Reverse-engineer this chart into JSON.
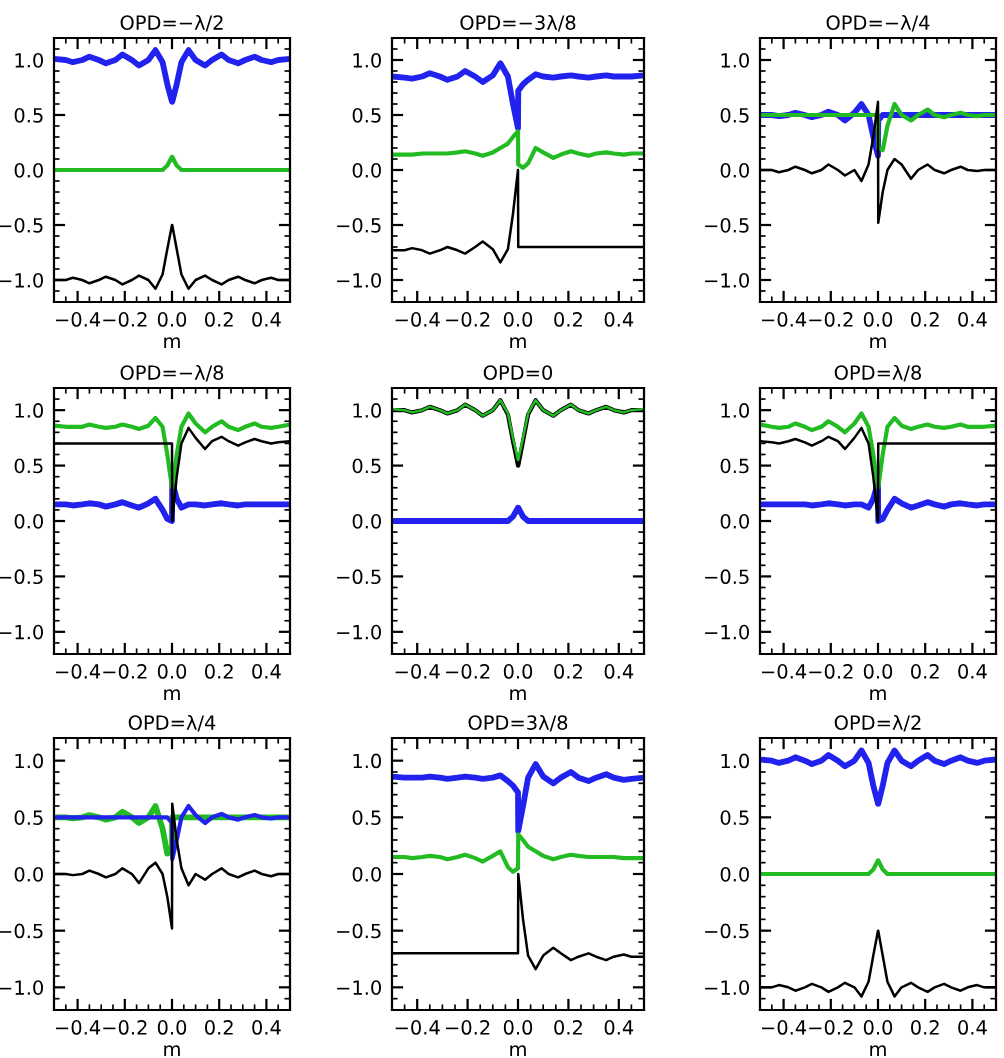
{
  "chart_data": [
    {
      "type": "line",
      "title": "OPD=−λ/2",
      "xlabel": "m",
      "x": [
        -0.5,
        -0.45,
        -0.42,
        -0.38,
        -0.35,
        -0.31,
        -0.28,
        -0.24,
        -0.21,
        -0.17,
        -0.14,
        -0.1,
        -0.07,
        -0.04,
        -0.02,
        0,
        0.001,
        0.02,
        0.04,
        0.07,
        0.1,
        0.14,
        0.17,
        0.21,
        0.24,
        0.28,
        0.31,
        0.35,
        0.38,
        0.42,
        0.45,
        0.5
      ],
      "xlim": [
        -0.5,
        0.5
      ],
      "xticks": [
        {
          "value": -0.4,
          "label": "−0.4"
        },
        {
          "value": -0.2,
          "label": "−0.2"
        },
        {
          "value": 0,
          "label": "0.0"
        },
        {
          "value": 0.2,
          "label": "0.2"
        },
        {
          "value": 0.4,
          "label": "0.4"
        }
      ],
      "ylim": [
        -1.2,
        1.2
      ],
      "yticks": [
        {
          "value": -1,
          "label": "−1.0"
        },
        {
          "value": -0.5,
          "label": "−0.5"
        },
        {
          "value": 0,
          "label": "0.0"
        },
        {
          "value": 0.5,
          "label": "0.5"
        },
        {
          "value": 1,
          "label": "1.0"
        }
      ],
      "series": [
        {
          "color": "#2222ee",
          "values": [
            1.01,
            1.0,
            0.98,
            1.0,
            1.03,
            1.0,
            0.97,
            1.0,
            1.05,
            1.0,
            0.95,
            1.0,
            1.09,
            0.98,
            0.78,
            0.62,
            0.62,
            0.78,
            0.98,
            1.09,
            1.0,
            0.95,
            1.0,
            1.05,
            1.0,
            0.97,
            1.0,
            1.03,
            1.0,
            0.98,
            1.0,
            1.01
          ]
        },
        {
          "color": "#22bb22",
          "values": [
            0,
            0,
            0,
            0,
            0,
            0,
            0,
            0,
            0,
            0,
            0,
            0,
            0,
            0,
            0.04,
            0.12,
            0.12,
            0.04,
            0,
            0,
            0,
            0,
            0,
            0,
            0,
            0,
            0,
            0,
            0,
            0,
            0,
            0
          ]
        },
        {
          "color": "#000000",
          "values": [
            -1.0,
            -1.0,
            -0.98,
            -1.0,
            -1.03,
            -1.0,
            -0.97,
            -1.0,
            -1.04,
            -1.0,
            -0.96,
            -1.0,
            -1.08,
            -0.95,
            -0.72,
            -0.5,
            -0.5,
            -0.72,
            -0.95,
            -1.08,
            -1.0,
            -0.96,
            -1.0,
            -1.04,
            -1.0,
            -0.97,
            -1.0,
            -1.03,
            -1.0,
            -0.98,
            -1.0,
            -1.0
          ]
        }
      ]
    },
    {
      "type": "line",
      "title": "OPD=−3λ/8",
      "xlabel": "m",
      "x": [
        -0.5,
        -0.45,
        -0.42,
        -0.38,
        -0.35,
        -0.31,
        -0.28,
        -0.24,
        -0.21,
        -0.17,
        -0.14,
        -0.1,
        -0.07,
        -0.04,
        -0.02,
        0,
        0.001,
        0.02,
        0.04,
        0.07,
        0.1,
        0.14,
        0.17,
        0.21,
        0.24,
        0.28,
        0.31,
        0.35,
        0.38,
        0.42,
        0.45,
        0.5
      ],
      "xlim": [
        -0.5,
        0.5
      ],
      "xticks": [
        {
          "value": -0.4,
          "label": "−0.4"
        },
        {
          "value": -0.2,
          "label": "−0.2"
        },
        {
          "value": 0,
          "label": "0.0"
        },
        {
          "value": 0.2,
          "label": "0.2"
        },
        {
          "value": 0.4,
          "label": "0.4"
        }
      ],
      "ylim": [
        -1.2,
        1.2
      ],
      "yticks": [
        {
          "value": -1,
          "label": "−1.0"
        },
        {
          "value": -0.5,
          "label": "−0.5"
        },
        {
          "value": 0,
          "label": "0.0"
        },
        {
          "value": 0.5,
          "label": "0.5"
        },
        {
          "value": 1,
          "label": "1.0"
        }
      ],
      "series": [
        {
          "color": "#2222ee",
          "values": [
            0.85,
            0.84,
            0.83,
            0.85,
            0.88,
            0.85,
            0.82,
            0.85,
            0.9,
            0.85,
            0.8,
            0.86,
            0.97,
            0.85,
            0.6,
            0.38,
            0.72,
            0.78,
            0.82,
            0.87,
            0.85,
            0.84,
            0.85,
            0.86,
            0.85,
            0.84,
            0.85,
            0.86,
            0.85,
            0.85,
            0.85,
            0.86
          ]
        },
        {
          "color": "#22bb22",
          "values": [
            0.14,
            0.14,
            0.14,
            0.15,
            0.15,
            0.15,
            0.15,
            0.16,
            0.17,
            0.15,
            0.13,
            0.16,
            0.2,
            0.24,
            0.3,
            0.35,
            0.05,
            0.02,
            0.06,
            0.2,
            0.16,
            0.11,
            0.14,
            0.17,
            0.15,
            0.13,
            0.15,
            0.16,
            0.15,
            0.14,
            0.15,
            0.15
          ]
        },
        {
          "color": "#000000",
          "values": [
            -0.73,
            -0.73,
            -0.71,
            -0.73,
            -0.76,
            -0.73,
            -0.7,
            -0.73,
            -0.76,
            -0.7,
            -0.65,
            -0.72,
            -0.84,
            -0.72,
            -0.4,
            0.0,
            -0.7,
            -0.7,
            -0.7,
            -0.7,
            -0.7,
            -0.7,
            -0.7,
            -0.7,
            -0.7,
            -0.7,
            -0.7,
            -0.7,
            -0.7,
            -0.7,
            -0.7,
            -0.7
          ]
        }
      ]
    },
    {
      "type": "line",
      "title": "OPD=−λ/4",
      "xlabel": "m",
      "x": [
        -0.5,
        -0.45,
        -0.42,
        -0.38,
        -0.35,
        -0.31,
        -0.28,
        -0.24,
        -0.21,
        -0.17,
        -0.14,
        -0.1,
        -0.07,
        -0.04,
        -0.02,
        0,
        0.001,
        0.02,
        0.04,
        0.07,
        0.1,
        0.14,
        0.17,
        0.21,
        0.24,
        0.28,
        0.31,
        0.35,
        0.38,
        0.42,
        0.45,
        0.5
      ],
      "xlim": [
        -0.5,
        0.5
      ],
      "xticks": [
        {
          "value": -0.4,
          "label": "−0.4"
        },
        {
          "value": -0.2,
          "label": "−0.2"
        },
        {
          "value": 0,
          "label": "0.0"
        },
        {
          "value": 0.2,
          "label": "0.2"
        },
        {
          "value": 0.4,
          "label": "0.4"
        }
      ],
      "ylim": [
        -1.2,
        1.2
      ],
      "yticks": [
        {
          "value": -1,
          "label": "−1.0"
        },
        {
          "value": -0.5,
          "label": "−0.5"
        },
        {
          "value": 0,
          "label": "0.0"
        },
        {
          "value": 0.5,
          "label": "0.5"
        },
        {
          "value": 1,
          "label": "1.0"
        }
      ],
      "series": [
        {
          "color": "#2222ee",
          "values": [
            0.5,
            0.5,
            0.49,
            0.5,
            0.52,
            0.5,
            0.48,
            0.5,
            0.53,
            0.5,
            0.45,
            0.52,
            0.6,
            0.5,
            0.3,
            0.13,
            0.45,
            0.5,
            0.5,
            0.5,
            0.5,
            0.5,
            0.5,
            0.5,
            0.5,
            0.5,
            0.5,
            0.5,
            0.5,
            0.5,
            0.5,
            0.5
          ]
        },
        {
          "color": "#22bb22",
          "values": [
            0.5,
            0.5,
            0.5,
            0.5,
            0.5,
            0.5,
            0.5,
            0.5,
            0.5,
            0.5,
            0.5,
            0.5,
            0.5,
            0.5,
            0.5,
            0.5,
            0.2,
            0.18,
            0.4,
            0.6,
            0.5,
            0.45,
            0.5,
            0.55,
            0.5,
            0.48,
            0.5,
            0.52,
            0.5,
            0.49,
            0.5,
            0.5
          ]
        },
        {
          "color": "#000000",
          "values": [
            0.0,
            0.0,
            -0.02,
            0.0,
            0.03,
            0.0,
            -0.03,
            0.0,
            0.05,
            0.0,
            -0.05,
            0.0,
            -0.1,
            0.05,
            0.3,
            0.62,
            -0.48,
            -0.2,
            0.0,
            0.1,
            0.05,
            -0.08,
            0.0,
            0.05,
            0.0,
            -0.03,
            0.0,
            0.03,
            0.0,
            -0.01,
            0.0,
            0.0
          ]
        }
      ]
    },
    {
      "type": "line",
      "title": "OPD=−λ/8",
      "xlabel": "m",
      "x": [
        -0.5,
        -0.45,
        -0.42,
        -0.38,
        -0.35,
        -0.31,
        -0.28,
        -0.24,
        -0.21,
        -0.17,
        -0.14,
        -0.1,
        -0.07,
        -0.04,
        -0.02,
        0,
        0.001,
        0.02,
        0.04,
        0.07,
        0.1,
        0.14,
        0.17,
        0.21,
        0.24,
        0.28,
        0.31,
        0.35,
        0.38,
        0.42,
        0.45,
        0.5
      ],
      "xlim": [
        -0.5,
        0.5
      ],
      "xticks": [
        {
          "value": -0.4,
          "label": "−0.4"
        },
        {
          "value": -0.2,
          "label": "−0.2"
        },
        {
          "value": 0,
          "label": "0.0"
        },
        {
          "value": 0.2,
          "label": "0.2"
        },
        {
          "value": 0.4,
          "label": "0.4"
        }
      ],
      "ylim": [
        -1.2,
        1.2
      ],
      "yticks": [
        {
          "value": -1,
          "label": "−1.0"
        },
        {
          "value": -0.5,
          "label": "−0.5"
        },
        {
          "value": 0,
          "label": "0.0"
        },
        {
          "value": 0.5,
          "label": "0.5"
        },
        {
          "value": 1,
          "label": "1.0"
        }
      ],
      "series": [
        {
          "color": "#2222ee",
          "values": [
            0.15,
            0.15,
            0.14,
            0.15,
            0.16,
            0.15,
            0.13,
            0.15,
            0.17,
            0.14,
            0.12,
            0.16,
            0.2,
            0.1,
            0.02,
            0.0,
            0.35,
            0.2,
            0.12,
            0.15,
            0.15,
            0.14,
            0.15,
            0.16,
            0.15,
            0.14,
            0.15,
            0.15,
            0.15,
            0.15,
            0.15,
            0.15
          ]
        },
        {
          "color": "#22bb22",
          "values": [
            0.86,
            0.85,
            0.85,
            0.85,
            0.87,
            0.85,
            0.84,
            0.85,
            0.87,
            0.85,
            0.83,
            0.86,
            0.93,
            0.85,
            0.6,
            0.3,
            0.3,
            0.6,
            0.85,
            0.97,
            0.88,
            0.8,
            0.85,
            0.9,
            0.85,
            0.82,
            0.85,
            0.88,
            0.85,
            0.84,
            0.85,
            0.87
          ]
        },
        {
          "color": "#000000",
          "values": [
            0.7,
            0.7,
            0.7,
            0.7,
            0.7,
            0.7,
            0.7,
            0.7,
            0.7,
            0.7,
            0.7,
            0.7,
            0.7,
            0.7,
            0.7,
            0.7,
            0.0,
            0.4,
            0.7,
            0.84,
            0.75,
            0.65,
            0.72,
            0.76,
            0.72,
            0.68,
            0.71,
            0.74,
            0.72,
            0.7,
            0.71,
            0.72
          ]
        }
      ]
    },
    {
      "type": "line",
      "title": "OPD=0",
      "xlabel": "m",
      "x": [
        -0.5,
        -0.45,
        -0.42,
        -0.38,
        -0.35,
        -0.31,
        -0.28,
        -0.24,
        -0.21,
        -0.17,
        -0.14,
        -0.1,
        -0.07,
        -0.04,
        -0.02,
        0,
        0.001,
        0.02,
        0.04,
        0.07,
        0.1,
        0.14,
        0.17,
        0.21,
        0.24,
        0.28,
        0.31,
        0.35,
        0.38,
        0.42,
        0.45,
        0.5
      ],
      "xlim": [
        -0.5,
        0.5
      ],
      "xticks": [
        {
          "value": -0.4,
          "label": "−0.4"
        },
        {
          "value": -0.2,
          "label": "−0.2"
        },
        {
          "value": 0,
          "label": "0.0"
        },
        {
          "value": 0.2,
          "label": "0.2"
        },
        {
          "value": 0.4,
          "label": "0.4"
        }
      ],
      "ylim": [
        -1.2,
        1.2
      ],
      "yticks": [
        {
          "value": -1,
          "label": "−1.0"
        },
        {
          "value": -0.5,
          "label": "−0.5"
        },
        {
          "value": 0,
          "label": "0.0"
        },
        {
          "value": 0.5,
          "label": "0.5"
        },
        {
          "value": 1,
          "label": "1.0"
        }
      ],
      "series": [
        {
          "color": "#2222ee",
          "values": [
            0,
            0,
            0,
            0,
            0,
            0,
            0,
            0,
            0,
            0,
            0,
            0,
            0,
            0,
            0.04,
            0.12,
            0.12,
            0.04,
            0,
            0,
            0,
            0,
            0,
            0,
            0,
            0,
            0,
            0,
            0,
            0,
            0,
            0
          ]
        },
        {
          "color": "#000000",
          "values": [
            1.0,
            1.0,
            0.98,
            1.0,
            1.03,
            1.0,
            0.97,
            1.0,
            1.05,
            1.0,
            0.95,
            1.0,
            1.09,
            0.96,
            0.72,
            0.5,
            0.5,
            0.72,
            0.96,
            1.09,
            1.0,
            0.95,
            1.0,
            1.05,
            1.0,
            0.97,
            1.0,
            1.03,
            1.0,
            0.98,
            1.0,
            1.0
          ]
        },
        {
          "color": "#22bb22",
          "values": [
            1.01,
            1.0,
            0.98,
            1.0,
            1.03,
            1.0,
            0.97,
            1.0,
            1.05,
            1.0,
            0.95,
            1.0,
            1.09,
            0.97,
            0.75,
            0.55,
            0.55,
            0.75,
            0.97,
            1.09,
            1.0,
            0.95,
            1.0,
            1.05,
            1.0,
            0.97,
            1.0,
            1.03,
            1.0,
            0.98,
            1.0,
            1.01
          ]
        }
      ]
    },
    {
      "type": "line",
      "title": "OPD=λ/8",
      "xlabel": "m",
      "x": [
        -0.5,
        -0.45,
        -0.42,
        -0.38,
        -0.35,
        -0.31,
        -0.28,
        -0.24,
        -0.21,
        -0.17,
        -0.14,
        -0.1,
        -0.07,
        -0.04,
        -0.02,
        0,
        0.001,
        0.02,
        0.04,
        0.07,
        0.1,
        0.14,
        0.17,
        0.21,
        0.24,
        0.28,
        0.31,
        0.35,
        0.38,
        0.42,
        0.45,
        0.5
      ],
      "xlim": [
        -0.5,
        0.5
      ],
      "xticks": [
        {
          "value": -0.4,
          "label": "−0.4"
        },
        {
          "value": -0.2,
          "label": "−0.2"
        },
        {
          "value": 0,
          "label": "0.0"
        },
        {
          "value": 0.2,
          "label": "0.2"
        },
        {
          "value": 0.4,
          "label": "0.4"
        }
      ],
      "ylim": [
        -1.2,
        1.2
      ],
      "yticks": [
        {
          "value": -1,
          "label": "−1.0"
        },
        {
          "value": -0.5,
          "label": "−0.5"
        },
        {
          "value": 0,
          "label": "0.0"
        },
        {
          "value": 0.5,
          "label": "0.5"
        },
        {
          "value": 1,
          "label": "1.0"
        }
      ],
      "series": [
        {
          "color": "#2222ee",
          "values": [
            0.15,
            0.15,
            0.15,
            0.15,
            0.15,
            0.15,
            0.14,
            0.15,
            0.16,
            0.15,
            0.14,
            0.15,
            0.15,
            0.12,
            0.2,
            0.35,
            0.0,
            0.02,
            0.1,
            0.2,
            0.16,
            0.12,
            0.14,
            0.17,
            0.15,
            0.13,
            0.15,
            0.16,
            0.15,
            0.14,
            0.15,
            0.15
          ]
        },
        {
          "color": "#22bb22",
          "values": [
            0.87,
            0.85,
            0.84,
            0.85,
            0.88,
            0.85,
            0.82,
            0.85,
            0.9,
            0.85,
            0.8,
            0.88,
            0.97,
            0.85,
            0.6,
            0.3,
            0.3,
            0.6,
            0.85,
            0.93,
            0.86,
            0.83,
            0.85,
            0.87,
            0.85,
            0.84,
            0.85,
            0.87,
            0.85,
            0.85,
            0.85,
            0.86
          ]
        },
        {
          "color": "#000000",
          "values": [
            0.72,
            0.71,
            0.7,
            0.72,
            0.74,
            0.71,
            0.68,
            0.72,
            0.76,
            0.72,
            0.65,
            0.75,
            0.84,
            0.7,
            0.4,
            0.0,
            0.7,
            0.7,
            0.7,
            0.7,
            0.7,
            0.7,
            0.7,
            0.7,
            0.7,
            0.7,
            0.7,
            0.7,
            0.7,
            0.7,
            0.7,
            0.7
          ]
        }
      ]
    },
    {
      "type": "line",
      "title": "OPD=λ/4",
      "xlabel": "m",
      "x": [
        -0.5,
        -0.45,
        -0.42,
        -0.38,
        -0.35,
        -0.31,
        -0.28,
        -0.24,
        -0.21,
        -0.17,
        -0.14,
        -0.1,
        -0.07,
        -0.04,
        -0.02,
        0,
        0.001,
        0.02,
        0.04,
        0.07,
        0.1,
        0.14,
        0.17,
        0.21,
        0.24,
        0.28,
        0.31,
        0.35,
        0.38,
        0.42,
        0.45,
        0.5
      ],
      "xlim": [
        -0.5,
        0.5
      ],
      "xticks": [
        {
          "value": -0.4,
          "label": "−0.4"
        },
        {
          "value": -0.2,
          "label": "−0.2"
        },
        {
          "value": 0,
          "label": "0.0"
        },
        {
          "value": 0.2,
          "label": "0.2"
        },
        {
          "value": 0.4,
          "label": "0.4"
        }
      ],
      "ylim": [
        -1.2,
        1.2
      ],
      "yticks": [
        {
          "value": -1,
          "label": "−1.0"
        },
        {
          "value": -0.5,
          "label": "−0.5"
        },
        {
          "value": 0,
          "label": "0.0"
        },
        {
          "value": 0.5,
          "label": "0.5"
        },
        {
          "value": 1,
          "label": "1.0"
        }
      ],
      "series": [
        {
          "color": "#22bb22",
          "values": [
            0.5,
            0.5,
            0.49,
            0.5,
            0.52,
            0.5,
            0.48,
            0.5,
            0.55,
            0.5,
            0.45,
            0.5,
            0.6,
            0.4,
            0.18,
            0.2,
            0.5,
            0.5,
            0.5,
            0.5,
            0.5,
            0.5,
            0.5,
            0.5,
            0.5,
            0.5,
            0.5,
            0.5,
            0.5,
            0.5,
            0.5,
            0.5
          ]
        },
        {
          "color": "#2222ee",
          "values": [
            0.5,
            0.5,
            0.5,
            0.5,
            0.5,
            0.5,
            0.5,
            0.5,
            0.5,
            0.5,
            0.5,
            0.5,
            0.5,
            0.5,
            0.5,
            0.45,
            0.13,
            0.3,
            0.5,
            0.6,
            0.52,
            0.45,
            0.5,
            0.53,
            0.5,
            0.48,
            0.5,
            0.52,
            0.5,
            0.49,
            0.5,
            0.5
          ]
        },
        {
          "color": "#000000",
          "values": [
            0.0,
            0.0,
            -0.01,
            0.0,
            0.03,
            0.0,
            -0.03,
            0.0,
            0.05,
            0.0,
            -0.08,
            0.05,
            0.1,
            0.0,
            -0.2,
            -0.48,
            0.62,
            0.3,
            0.05,
            -0.1,
            0.0,
            -0.05,
            0.0,
            0.05,
            0.0,
            -0.03,
            0.0,
            0.03,
            0.0,
            -0.02,
            0.0,
            0.0
          ]
        }
      ]
    },
    {
      "type": "line",
      "title": "OPD=3λ/8",
      "xlabel": "m",
      "x": [
        -0.5,
        -0.45,
        -0.42,
        -0.38,
        -0.35,
        -0.31,
        -0.28,
        -0.24,
        -0.21,
        -0.17,
        -0.14,
        -0.1,
        -0.07,
        -0.04,
        -0.02,
        0,
        0.001,
        0.02,
        0.04,
        0.07,
        0.1,
        0.14,
        0.17,
        0.21,
        0.24,
        0.28,
        0.31,
        0.35,
        0.38,
        0.42,
        0.45,
        0.5
      ],
      "xlim": [
        -0.5,
        0.5
      ],
      "xticks": [
        {
          "value": -0.4,
          "label": "−0.4"
        },
        {
          "value": -0.2,
          "label": "−0.2"
        },
        {
          "value": 0,
          "label": "0.0"
        },
        {
          "value": 0.2,
          "label": "0.2"
        },
        {
          "value": 0.4,
          "label": "0.4"
        }
      ],
      "ylim": [
        -1.2,
        1.2
      ],
      "yticks": [
        {
          "value": -1,
          "label": "−1.0"
        },
        {
          "value": -0.5,
          "label": "−0.5"
        },
        {
          "value": 0,
          "label": "0.0"
        },
        {
          "value": 0.5,
          "label": "0.5"
        },
        {
          "value": 1,
          "label": "1.0"
        }
      ],
      "series": [
        {
          "color": "#2222ee",
          "values": [
            0.86,
            0.85,
            0.85,
            0.85,
            0.86,
            0.85,
            0.84,
            0.85,
            0.86,
            0.85,
            0.84,
            0.85,
            0.87,
            0.82,
            0.78,
            0.72,
            0.38,
            0.6,
            0.85,
            0.97,
            0.86,
            0.8,
            0.85,
            0.9,
            0.85,
            0.82,
            0.85,
            0.88,
            0.85,
            0.83,
            0.84,
            0.85
          ]
        },
        {
          "color": "#22bb22",
          "values": [
            0.15,
            0.15,
            0.14,
            0.15,
            0.16,
            0.15,
            0.13,
            0.15,
            0.17,
            0.14,
            0.11,
            0.16,
            0.2,
            0.06,
            0.02,
            0.05,
            0.35,
            0.3,
            0.24,
            0.2,
            0.16,
            0.13,
            0.15,
            0.17,
            0.16,
            0.15,
            0.15,
            0.15,
            0.15,
            0.14,
            0.14,
            0.14
          ]
        },
        {
          "color": "#000000",
          "values": [
            -0.7,
            -0.7,
            -0.7,
            -0.7,
            -0.7,
            -0.7,
            -0.7,
            -0.7,
            -0.7,
            -0.7,
            -0.7,
            -0.7,
            -0.7,
            -0.7,
            -0.7,
            -0.7,
            0.0,
            -0.4,
            -0.72,
            -0.84,
            -0.72,
            -0.65,
            -0.7,
            -0.76,
            -0.73,
            -0.7,
            -0.73,
            -0.76,
            -0.73,
            -0.71,
            -0.73,
            -0.73
          ]
        }
      ]
    },
    {
      "type": "line",
      "title": "OPD=λ/2",
      "xlabel": "m",
      "x": [
        -0.5,
        -0.45,
        -0.42,
        -0.38,
        -0.35,
        -0.31,
        -0.28,
        -0.24,
        -0.21,
        -0.17,
        -0.14,
        -0.1,
        -0.07,
        -0.04,
        -0.02,
        0,
        0.001,
        0.02,
        0.04,
        0.07,
        0.1,
        0.14,
        0.17,
        0.21,
        0.24,
        0.28,
        0.31,
        0.35,
        0.38,
        0.42,
        0.45,
        0.5
      ],
      "xlim": [
        -0.5,
        0.5
      ],
      "xticks": [
        {
          "value": -0.4,
          "label": "−0.4"
        },
        {
          "value": -0.2,
          "label": "−0.2"
        },
        {
          "value": 0,
          "label": "0.0"
        },
        {
          "value": 0.2,
          "label": "0.2"
        },
        {
          "value": 0.4,
          "label": "0.4"
        }
      ],
      "ylim": [
        -1.2,
        1.2
      ],
      "yticks": [
        {
          "value": -1,
          "label": "−1.0"
        },
        {
          "value": -0.5,
          "label": "−0.5"
        },
        {
          "value": 0,
          "label": "0.0"
        },
        {
          "value": 0.5,
          "label": "0.5"
        },
        {
          "value": 1,
          "label": "1.0"
        }
      ],
      "series": [
        {
          "color": "#2222ee",
          "values": [
            1.01,
            1.0,
            0.98,
            1.0,
            1.03,
            1.0,
            0.97,
            1.0,
            1.05,
            1.0,
            0.95,
            1.0,
            1.09,
            0.98,
            0.78,
            0.62,
            0.62,
            0.78,
            0.98,
            1.09,
            1.0,
            0.95,
            1.0,
            1.05,
            1.0,
            0.97,
            1.0,
            1.03,
            1.0,
            0.98,
            1.0,
            1.01
          ]
        },
        {
          "color": "#22bb22",
          "values": [
            0,
            0,
            0,
            0,
            0,
            0,
            0,
            0,
            0,
            0,
            0,
            0,
            0,
            0,
            0.04,
            0.12,
            0.12,
            0.04,
            0,
            0,
            0,
            0,
            0,
            0,
            0,
            0,
            0,
            0,
            0,
            0,
            0,
            0
          ]
        },
        {
          "color": "#000000",
          "values": [
            -1.0,
            -1.0,
            -0.98,
            -1.0,
            -1.03,
            -1.0,
            -0.97,
            -1.0,
            -1.04,
            -1.0,
            -0.96,
            -1.0,
            -1.08,
            -0.95,
            -0.72,
            -0.5,
            -0.5,
            -0.72,
            -0.95,
            -1.08,
            -1.0,
            -0.96,
            -1.0,
            -1.04,
            -1.0,
            -0.97,
            -1.0,
            -1.03,
            -1.0,
            -0.98,
            -1.0,
            -1.0
          ]
        }
      ]
    }
  ]
}
